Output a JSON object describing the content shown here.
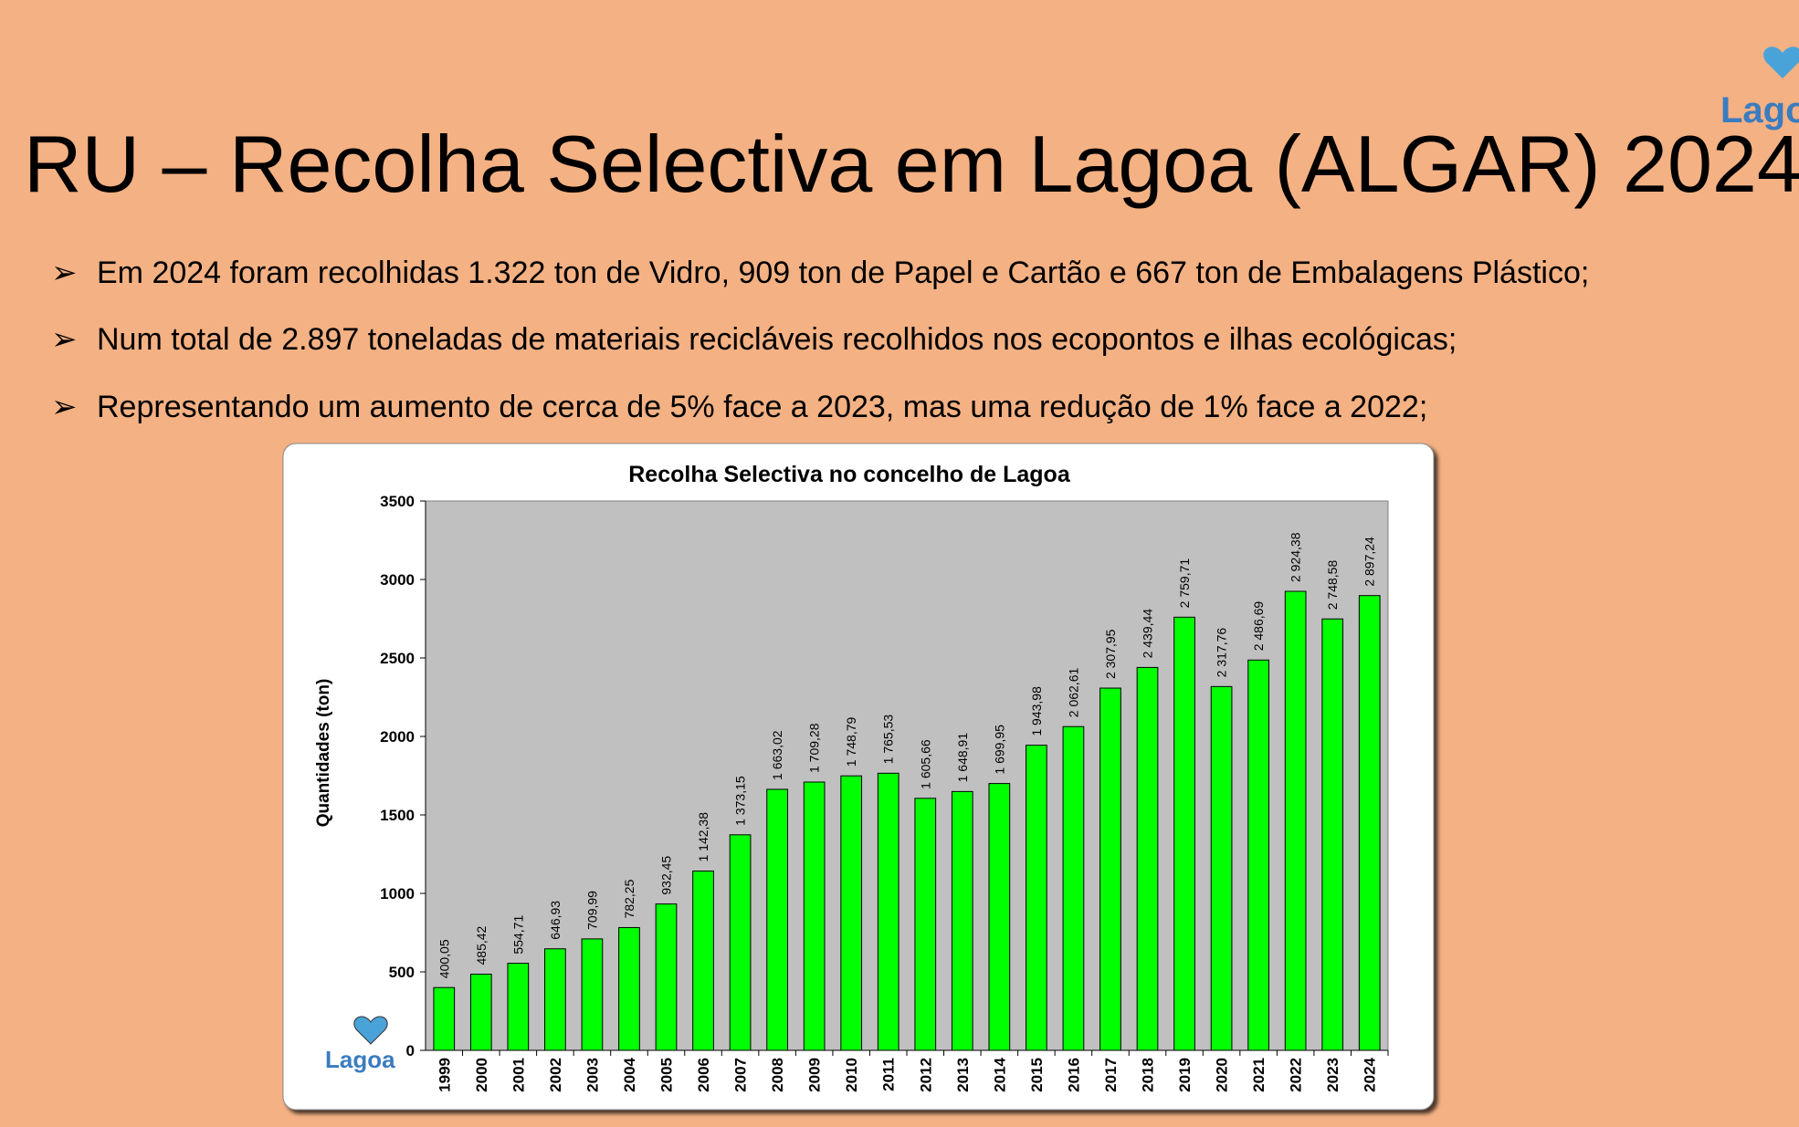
{
  "header": {
    "title": "RU – Recolha Selectiva em Lagoa (ALGAR) 2024",
    "logo": "Lagoa"
  },
  "bullets": [
    "Em 2024 foram recolhidas 1.322 ton de Vidro, 909 ton de Papel e Cartão e 667 ton de Embalagens Plástico;",
    "Num total de 2.897 toneladas de materiais recicláveis recolhidos nos ecopontos e ilhas ecológicas;",
    "Representando um aumento de cerca de 5% face a 2023, mas uma redução de 1% face a 2022;"
  ],
  "chart_data": {
    "type": "bar",
    "title": "Recolha Selectiva no concelho de Lagoa",
    "y_label": "Quantidades (ton)",
    "logo": "Lagoa",
    "categories": [
      "1999",
      "2000",
      "2001",
      "2002",
      "2003",
      "2004",
      "2005",
      "2006",
      "2007",
      "2008",
      "2009",
      "2010",
      "2011",
      "2012",
      "2013",
      "2014",
      "2015",
      "2016",
      "2017",
      "2018",
      "2019",
      "2020",
      "2021",
      "2022",
      "2023",
      "2024"
    ],
    "values": [
      400.05,
      485.42,
      554.71,
      646.93,
      709.99,
      782.25,
      932.45,
      1142.38,
      1373.15,
      1663.02,
      1709.28,
      1748.79,
      1765.53,
      1605.66,
      1648.91,
      1699.95,
      1943.98,
      2062.61,
      2307.95,
      2439.44,
      2759.71,
      2317.76,
      2486.69,
      2924.38,
      2748.58,
      2897.24
    ],
    "value_labels": [
      "400,05",
      "485,42",
      "554,71",
      "646,93",
      "709,99",
      "782,25",
      "932,45",
      "1 142,38",
      "1 373,15",
      "1 663,02",
      "1 709,28",
      "1 748,79",
      "1 765,53",
      "1 605,66",
      "1 648,91",
      "1 699,95",
      "1 943,98",
      "2 062,61",
      "2 307,95",
      "2 439,44",
      "2 759,71",
      "2 317,76",
      "2 486,69",
      "2 924,38",
      "2 748,58",
      "2 897,24"
    ],
    "color": "#00ff00",
    "ylim": [
      0,
      3500
    ],
    "yticks": [
      0,
      500,
      1000,
      1500,
      2000,
      2500,
      3000,
      3500
    ],
    "grid": false
  }
}
